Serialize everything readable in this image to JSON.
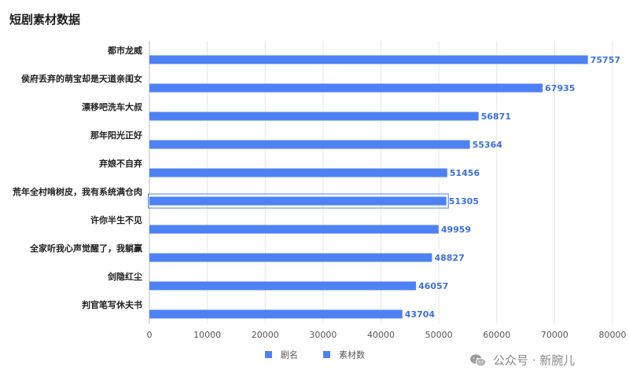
{
  "title": "短剧素材数据",
  "chart_data": {
    "type": "bar",
    "orientation": "horizontal",
    "title": "短剧素材数据",
    "categories": [
      "都市龙威",
      "侯府丢弃的萌宝却是天道亲闺女",
      "漂移吧洗车大叔",
      "那年阳光正好",
      "弃娘不自弃",
      "荒年全村啃树皮，我有系统满仓肉",
      "许你半生不见",
      "全家听我心声觉醒了，我躺赢",
      "剑隐红尘",
      "判官笔写休夫书"
    ],
    "series": [
      {
        "name": "素材数",
        "values": [
          75757,
          67935,
          56871,
          55364,
          51456,
          51305,
          49959,
          48827,
          46057,
          43704
        ]
      }
    ],
    "xlim": [
      0,
      80000
    ],
    "xticks": [
      0,
      10000,
      20000,
      30000,
      40000,
      50000,
      60000,
      70000,
      80000
    ],
    "grid": true,
    "legend": {
      "position": "bottom",
      "items": [
        "剧名",
        "素材数"
      ]
    },
    "highlighted_category": "荒年全村啃树皮，我有系统满仓肉",
    "colors": {
      "bar": "#4e82f4",
      "label": "#3d6fe0",
      "grid": "#e6e6e6"
    }
  },
  "watermark": {
    "text": "公众号 · 新腕儿"
  }
}
